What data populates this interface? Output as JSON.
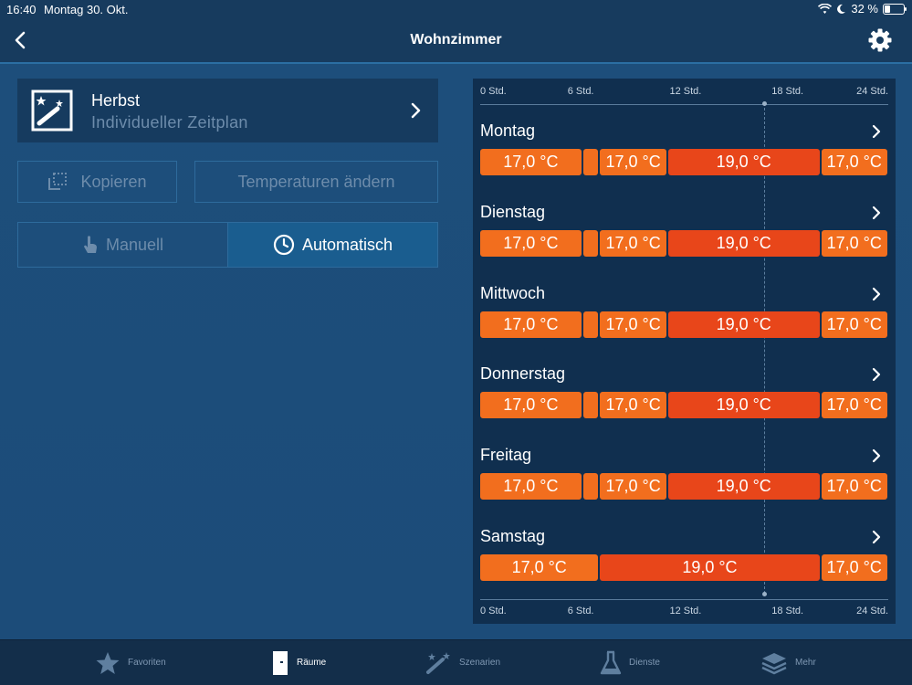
{
  "status": {
    "time": "16:40",
    "date": "Montag 30. Okt.",
    "battery": "32 %",
    "battery_level": 0.32
  },
  "nav": {
    "title": "Wohnzimmer"
  },
  "zeitplan": {
    "name": "Herbst",
    "type": "Individueller Zeitplan"
  },
  "actions": {
    "copy": "Kopieren",
    "change_temps": "Temperaturen ändern"
  },
  "mode": {
    "manual": "Manuell",
    "auto": "Automatisch",
    "selected": "Automatisch"
  },
  "schedule": {
    "axis_labels": [
      "0 Std.",
      "6 Std.",
      "12 Std.",
      "18 Std.",
      "24 Std."
    ],
    "now_hour": 16.7,
    "days": [
      {
        "name": "Montag",
        "segments": [
          {
            "from": 0,
            "to": 6,
            "temp": "17,0 °C"
          },
          {
            "from": 6,
            "to": 7,
            "temp": ""
          },
          {
            "from": 7,
            "to": 11,
            "temp": "17,0 °C"
          },
          {
            "from": 11,
            "to": 20,
            "temp": "19,0 °C"
          },
          {
            "from": 20,
            "to": 24,
            "temp": "17,0 °C"
          }
        ]
      },
      {
        "name": "Dienstag",
        "segments": [
          {
            "from": 0,
            "to": 6,
            "temp": "17,0 °C"
          },
          {
            "from": 6,
            "to": 7,
            "temp": ""
          },
          {
            "from": 7,
            "to": 11,
            "temp": "17,0 °C"
          },
          {
            "from": 11,
            "to": 20,
            "temp": "19,0 °C"
          },
          {
            "from": 20,
            "to": 24,
            "temp": "17,0 °C"
          }
        ]
      },
      {
        "name": "Mittwoch",
        "segments": [
          {
            "from": 0,
            "to": 6,
            "temp": "17,0 °C"
          },
          {
            "from": 6,
            "to": 7,
            "temp": ""
          },
          {
            "from": 7,
            "to": 11,
            "temp": "17,0 °C"
          },
          {
            "from": 11,
            "to": 20,
            "temp": "19,0 °C"
          },
          {
            "from": 20,
            "to": 24,
            "temp": "17,0 °C"
          }
        ]
      },
      {
        "name": "Donnerstag",
        "segments": [
          {
            "from": 0,
            "to": 6,
            "temp": "17,0 °C"
          },
          {
            "from": 6,
            "to": 7,
            "temp": ""
          },
          {
            "from": 7,
            "to": 11,
            "temp": "17,0 °C"
          },
          {
            "from": 11,
            "to": 20,
            "temp": "19,0 °C"
          },
          {
            "from": 20,
            "to": 24,
            "temp": "17,0 °C"
          }
        ]
      },
      {
        "name": "Freitag",
        "segments": [
          {
            "from": 0,
            "to": 6,
            "temp": "17,0 °C"
          },
          {
            "from": 6,
            "to": 7,
            "temp": ""
          },
          {
            "from": 7,
            "to": 11,
            "temp": "17,0 °C"
          },
          {
            "from": 11,
            "to": 20,
            "temp": "19,0 °C"
          },
          {
            "from": 20,
            "to": 24,
            "temp": "17,0 °C"
          }
        ]
      },
      {
        "name": "Samstag",
        "segments": [
          {
            "from": 0,
            "to": 7,
            "temp": "17,0 °C"
          },
          {
            "from": 7,
            "to": 20,
            "temp": "19,0 °C"
          },
          {
            "from": 20,
            "to": 24,
            "temp": "17,0 °C"
          }
        ]
      }
    ]
  },
  "tabs": [
    {
      "label": "Favoriten",
      "icon": "star-icon"
    },
    {
      "label": "Räume",
      "icon": "door-icon",
      "active": true
    },
    {
      "label": "Szenarien",
      "icon": "magic-wand-icon"
    },
    {
      "label": "Dienste",
      "icon": "flask-icon"
    },
    {
      "label": "Mehr",
      "icon": "layers-icon"
    }
  ],
  "colors": {
    "temp_17": "#f26e1e",
    "temp_19": "#e8461a",
    "accent": "#1a5d8f"
  }
}
